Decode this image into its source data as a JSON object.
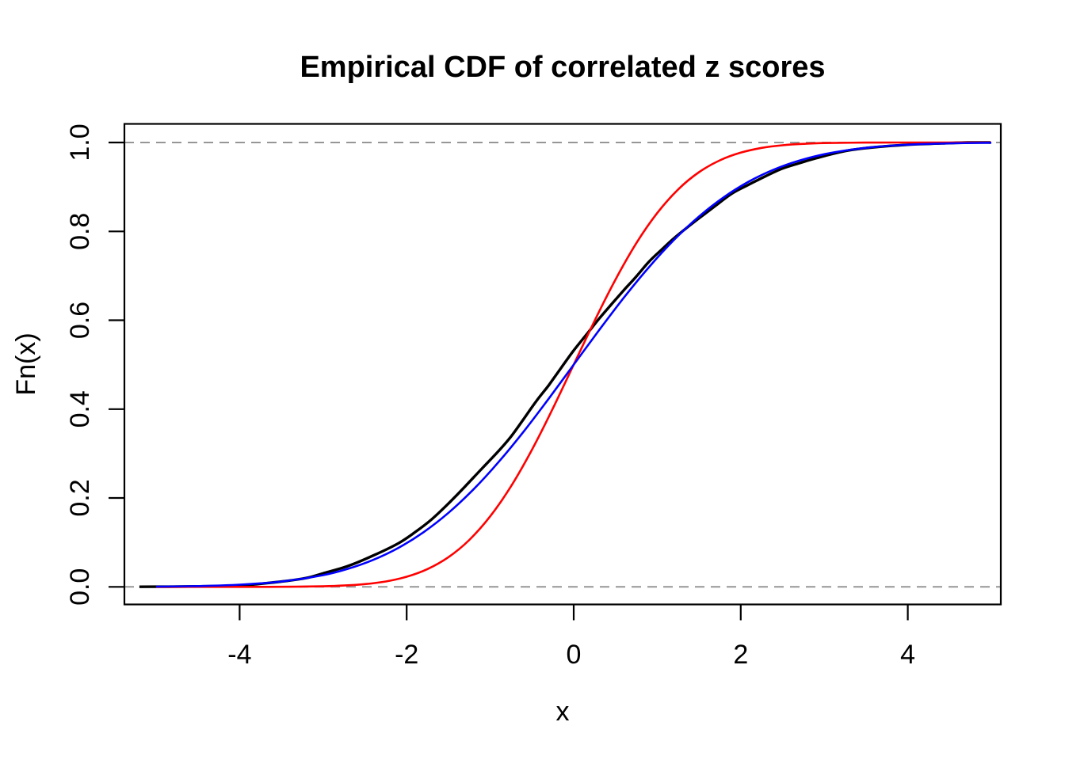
{
  "chart_data": {
    "type": "line",
    "title": "Empirical CDF of correlated z scores",
    "xlabel": "x",
    "ylabel": "Fn(x)",
    "xlim": [
      -5.38,
      5.11
    ],
    "ylim": [
      -0.04,
      1.04
    ],
    "grid": false,
    "legend": "none",
    "background_color": "#FFFFFF",
    "box_color": "#000000",
    "x_ticks": {
      "values": [
        -4,
        -2,
        0,
        2,
        4
      ],
      "labels": [
        "-4",
        "-2",
        "0",
        "2",
        "4"
      ]
    },
    "y_ticks": {
      "values": [
        0.0,
        0.2,
        0.4,
        0.6,
        0.8,
        1.0
      ],
      "labels": [
        "0.0",
        "0.2",
        "0.4",
        "0.6",
        "0.8",
        "1.0"
      ]
    },
    "reference_lines": [
      {
        "y": 0.0,
        "style": "dashed",
        "color": "#969696",
        "width": 2
      },
      {
        "y": 1.0,
        "style": "dashed",
        "color": "#969696",
        "width": 2
      }
    ],
    "series": [
      {
        "name": "empirical-cdf",
        "color": "#000000",
        "width": 3.4,
        "points": [
          [
            -5.2,
            0.0002
          ],
          [
            -4.99,
            0.0003
          ],
          [
            -4.5,
            0.001
          ],
          [
            -4.0,
            0.003
          ],
          [
            -3.5,
            0.012
          ],
          [
            -3.2,
            0.02
          ],
          [
            -3.0,
            0.0305
          ],
          [
            -2.7,
            0.047
          ],
          [
            -2.4,
            0.0705
          ],
          [
            -2.1,
            0.098
          ],
          [
            -1.9,
            0.123
          ],
          [
            -1.7,
            0.152
          ],
          [
            -1.5,
            0.1875
          ],
          [
            -1.3,
            0.226
          ],
          [
            -1.1,
            0.266
          ],
          [
            -0.9,
            0.3055
          ],
          [
            -0.75,
            0.3385
          ],
          [
            -0.6,
            0.3775
          ],
          [
            -0.45,
            0.4175
          ],
          [
            -0.3,
            0.4535
          ],
          [
            -0.15,
            0.493
          ],
          [
            0.0,
            0.532
          ],
          [
            0.15,
            0.567
          ],
          [
            0.3,
            0.6025
          ],
          [
            0.45,
            0.6355
          ],
          [
            0.6,
            0.6675
          ],
          [
            0.75,
            0.6985
          ],
          [
            0.9,
            0.7315
          ],
          [
            1.05,
            0.7585
          ],
          [
            1.2,
            0.7845
          ],
          [
            1.35,
            0.8075
          ],
          [
            1.5,
            0.8295
          ],
          [
            1.7,
            0.858
          ],
          [
            1.9,
            0.886
          ],
          [
            2.1,
            0.9055
          ],
          [
            2.3,
            0.9245
          ],
          [
            2.5,
            0.9415
          ],
          [
            2.7,
            0.9535
          ],
          [
            2.9,
            0.9645
          ],
          [
            3.1,
            0.9745
          ],
          [
            3.3,
            0.9825
          ],
          [
            3.5,
            0.9875
          ],
          [
            3.8,
            0.9925
          ],
          [
            4.1,
            0.996
          ],
          [
            4.4,
            0.998
          ],
          [
            4.72,
            1.0
          ],
          [
            4.99,
            1.0
          ]
        ]
      },
      {
        "name": "standard-normal-cdf",
        "color": "#FF0000",
        "width": 2.6,
        "points": [
          [
            -5.0,
            0.0
          ],
          [
            -4.0,
            0.0
          ],
          [
            -3.5,
            0.0002
          ],
          [
            -3.0,
            0.0013
          ],
          [
            -2.75,
            0.003
          ],
          [
            -2.5,
            0.0062
          ],
          [
            -2.25,
            0.0122
          ],
          [
            -2.0,
            0.0228
          ],
          [
            -1.75,
            0.0401
          ],
          [
            -1.5,
            0.0668
          ],
          [
            -1.25,
            0.1056
          ],
          [
            -1.0,
            0.1587
          ],
          [
            -0.75,
            0.2266
          ],
          [
            -0.5,
            0.3085
          ],
          [
            -0.25,
            0.4013
          ],
          [
            0.0,
            0.5
          ],
          [
            0.25,
            0.5987
          ],
          [
            0.5,
            0.6915
          ],
          [
            0.75,
            0.7734
          ],
          [
            1.0,
            0.8413
          ],
          [
            1.25,
            0.8944
          ],
          [
            1.5,
            0.9332
          ],
          [
            1.75,
            0.9599
          ],
          [
            2.0,
            0.9772
          ],
          [
            2.25,
            0.9878
          ],
          [
            2.5,
            0.9938
          ],
          [
            2.75,
            0.997
          ],
          [
            3.0,
            0.9987
          ],
          [
            3.5,
            0.9998
          ],
          [
            4.0,
            1.0
          ],
          [
            5.0,
            1.0
          ]
        ]
      },
      {
        "name": "wide-normal-cdf",
        "color": "#0000FF",
        "width": 2.6,
        "points": [
          [
            -5.0,
            0.0006
          ],
          [
            -4.5,
            0.0018
          ],
          [
            -4.0,
            0.0049
          ],
          [
            -3.5,
            0.0119
          ],
          [
            -3.0,
            0.0264
          ],
          [
            -2.7,
            0.0408
          ],
          [
            -2.4,
            0.0607
          ],
          [
            -2.1,
            0.0877
          ],
          [
            -1.8,
            0.1228
          ],
          [
            -1.5,
            0.1666
          ],
          [
            -1.2,
            0.2194
          ],
          [
            -0.9,
            0.2807
          ],
          [
            -0.6,
            0.3493
          ],
          [
            -0.3,
            0.4233
          ],
          [
            0.0,
            0.5
          ],
          [
            0.3,
            0.5767
          ],
          [
            0.6,
            0.6507
          ],
          [
            0.9,
            0.7193
          ],
          [
            1.2,
            0.7806
          ],
          [
            1.5,
            0.8334
          ],
          [
            1.8,
            0.8772
          ],
          [
            2.1,
            0.9123
          ],
          [
            2.4,
            0.9393
          ],
          [
            2.7,
            0.9592
          ],
          [
            3.0,
            0.9736
          ],
          [
            3.3,
            0.9833
          ],
          [
            3.6,
            0.9898
          ],
          [
            4.0,
            0.9951
          ],
          [
            4.5,
            0.9981
          ],
          [
            5.0,
            0.9994
          ]
        ]
      }
    ]
  }
}
